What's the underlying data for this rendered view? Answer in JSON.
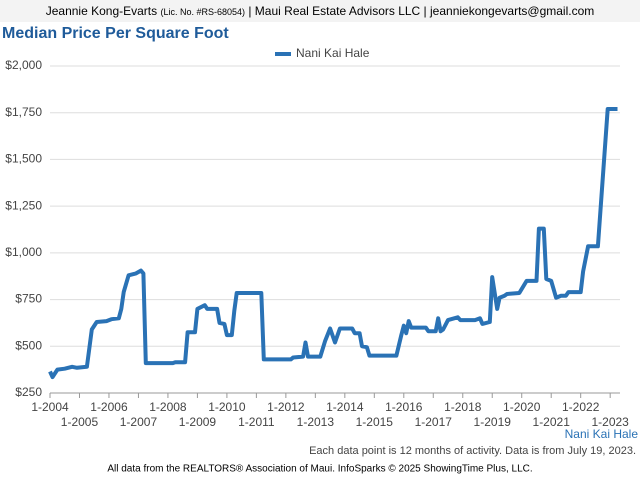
{
  "header": {
    "name": "Jeannie Kong-Evarts",
    "license": "(Lic. No. #RS-68054)",
    "rest": "| Maui Real Estate Advisors LLC | jeanniekongevarts@gmail.com"
  },
  "chart_data": {
    "type": "line",
    "title": "Median Price Per Square Foot",
    "x": [
      "1-2004",
      "2-2004",
      "4-2004",
      "7-2004",
      "10-2004",
      "12-2004",
      "4-2005",
      "6-2005",
      "8-2005",
      "12-2005",
      "2-2006",
      "5-2006",
      "6-2006",
      "7-2006",
      "9-2006",
      "12-2006",
      "2-2007",
      "3-2007",
      "4-2007",
      "3-2008",
      "4-2008",
      "8-2008",
      "9-2008",
      "12-2008",
      "1-2009",
      "4-2009",
      "5-2009",
      "9-2009",
      "10-2009",
      "12-2009",
      "1-2010",
      "3-2010",
      "4-2010",
      "5-2010",
      "3-2011",
      "4-2011",
      "3-2012",
      "4-2012",
      "8-2012",
      "9-2012",
      "10-2012",
      "3-2013",
      "5-2013",
      "7-2013",
      "9-2013",
      "11-2013",
      "4-2014",
      "5-2014",
      "7-2014",
      "8-2014",
      "10-2014",
      "11-2014",
      "10-2015",
      "12-2015",
      "1-2016",
      "2-2016",
      "3-2016",
      "4-2016",
      "10-2016",
      "11-2016",
      "2-2017",
      "3-2017",
      "4-2017",
      "5-2017",
      "7-2017",
      "11-2017",
      "12-2017",
      "6-2018",
      "8-2018",
      "9-2018",
      "12-2018",
      "1-2019",
      "3-2019",
      "4-2019",
      "6-2019",
      "7-2019",
      "12-2019",
      "3-2020",
      "7-2020",
      "8-2020",
      "10-2020",
      "11-2020",
      "1-2021",
      "3-2021",
      "5-2021",
      "7-2021",
      "8-2021",
      "12-2021",
      "1-2022",
      "2-2022",
      "4-2022",
      "8-2022",
      "12-2022",
      "1-2023",
      "4-2023"
    ],
    "series": [
      {
        "name": "Nani Kai Hale",
        "color": "#2a72b5",
        "values": [
          365,
          335,
          375,
          380,
          390,
          385,
          390,
          590,
          630,
          635,
          645,
          650,
          700,
          790,
          880,
          890,
          905,
          890,
          410,
          410,
          415,
          415,
          575,
          575,
          700,
          720,
          700,
          700,
          625,
          620,
          560,
          560,
          690,
          785,
          785,
          430,
          430,
          440,
          445,
          520,
          445,
          445,
          530,
          595,
          520,
          595,
          595,
          570,
          570,
          500,
          495,
          450,
          450,
          560,
          610,
          570,
          635,
          600,
          600,
          580,
          580,
          650,
          580,
          590,
          640,
          655,
          640,
          640,
          650,
          620,
          630,
          870,
          700,
          760,
          770,
          780,
          785,
          850,
          850,
          1130,
          1130,
          860,
          850,
          760,
          770,
          770,
          790,
          790,
          790,
          900,
          1035,
          1035,
          1770,
          1770,
          1770
        ]
      }
    ],
    "ylim": [
      250,
      2000
    ],
    "yticks": [
      {
        "value": 250,
        "label": "$250"
      },
      {
        "value": 500,
        "label": "$500"
      },
      {
        "value": 750,
        "label": "$750"
      },
      {
        "value": 1000,
        "label": "$1,000"
      },
      {
        "value": 1250,
        "label": "$1,250"
      },
      {
        "value": 1500,
        "label": "$1,500"
      },
      {
        "value": 1750,
        "label": "$1,750"
      },
      {
        "value": 2000,
        "label": "$2,000"
      }
    ],
    "xlim": [
      "1-2004",
      "5-2023"
    ],
    "xticks": [
      "1-2004",
      "1-2005",
      "1-2006",
      "1-2007",
      "1-2008",
      "1-2009",
      "1-2010",
      "1-2011",
      "1-2012",
      "1-2013",
      "1-2014",
      "1-2015",
      "1-2016",
      "1-2017",
      "1-2018",
      "1-2019",
      "1-2020",
      "1-2021",
      "1-2022",
      "1-2023"
    ],
    "grid": true,
    "note": "Each data point is 12 months of activity. Data is from July 19, 2023.",
    "footer": "All data from the REALTORS® Association of Maui. InfoSparks © 2025 ShowingTime Plus, LLC."
  }
}
